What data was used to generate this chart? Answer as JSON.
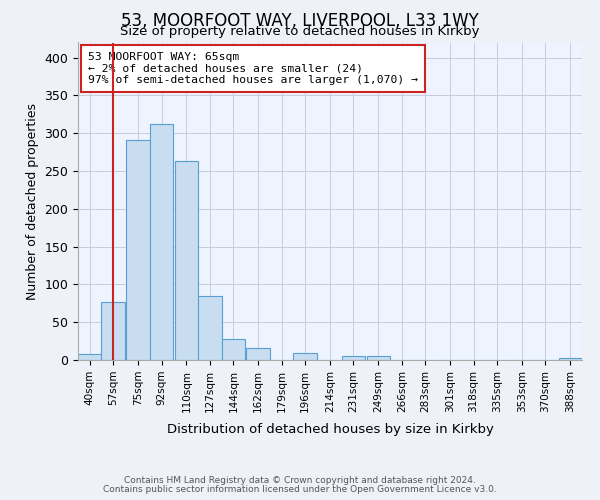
{
  "title": "53, MOORFOOT WAY, LIVERPOOL, L33 1WY",
  "subtitle": "Size of property relative to detached houses in Kirkby",
  "xlabel": "Distribution of detached houses by size in Kirkby",
  "ylabel": "Number of detached properties",
  "bin_labels": [
    "40sqm",
    "57sqm",
    "75sqm",
    "92sqm",
    "110sqm",
    "127sqm",
    "144sqm",
    "162sqm",
    "179sqm",
    "196sqm",
    "214sqm",
    "231sqm",
    "249sqm",
    "266sqm",
    "283sqm",
    "301sqm",
    "318sqm",
    "335sqm",
    "353sqm",
    "370sqm",
    "388sqm"
  ],
  "bar_heights": [
    8,
    77,
    291,
    312,
    263,
    85,
    28,
    16,
    0,
    9,
    0,
    5,
    5,
    0,
    0,
    0,
    0,
    0,
    0,
    0,
    2
  ],
  "bar_color": "#c8ddf0",
  "bar_edge_color": "#5a9fd4",
  "annotation_line1": "53 MOORFOOT WAY: 65sqm",
  "annotation_line2": "← 2% of detached houses are smaller (24)",
  "annotation_line3": "97% of semi-detached houses are larger (1,070) →",
  "annotation_box_edge_color": "#cc2222",
  "property_line_color": "#cc2222",
  "ylim_max": 420,
  "yticks": [
    0,
    50,
    100,
    150,
    200,
    250,
    300,
    350,
    400
  ],
  "footer_line1": "Contains HM Land Registry data © Crown copyright and database right 2024.",
  "footer_line2": "Contains public sector information licensed under the Open Government Licence v3.0.",
  "bg_color": "#eef2f8",
  "plot_bg_color": "#eef4ff",
  "grid_color": "#c8ccd8",
  "title_fontsize": 12,
  "subtitle_fontsize": 9.5
}
